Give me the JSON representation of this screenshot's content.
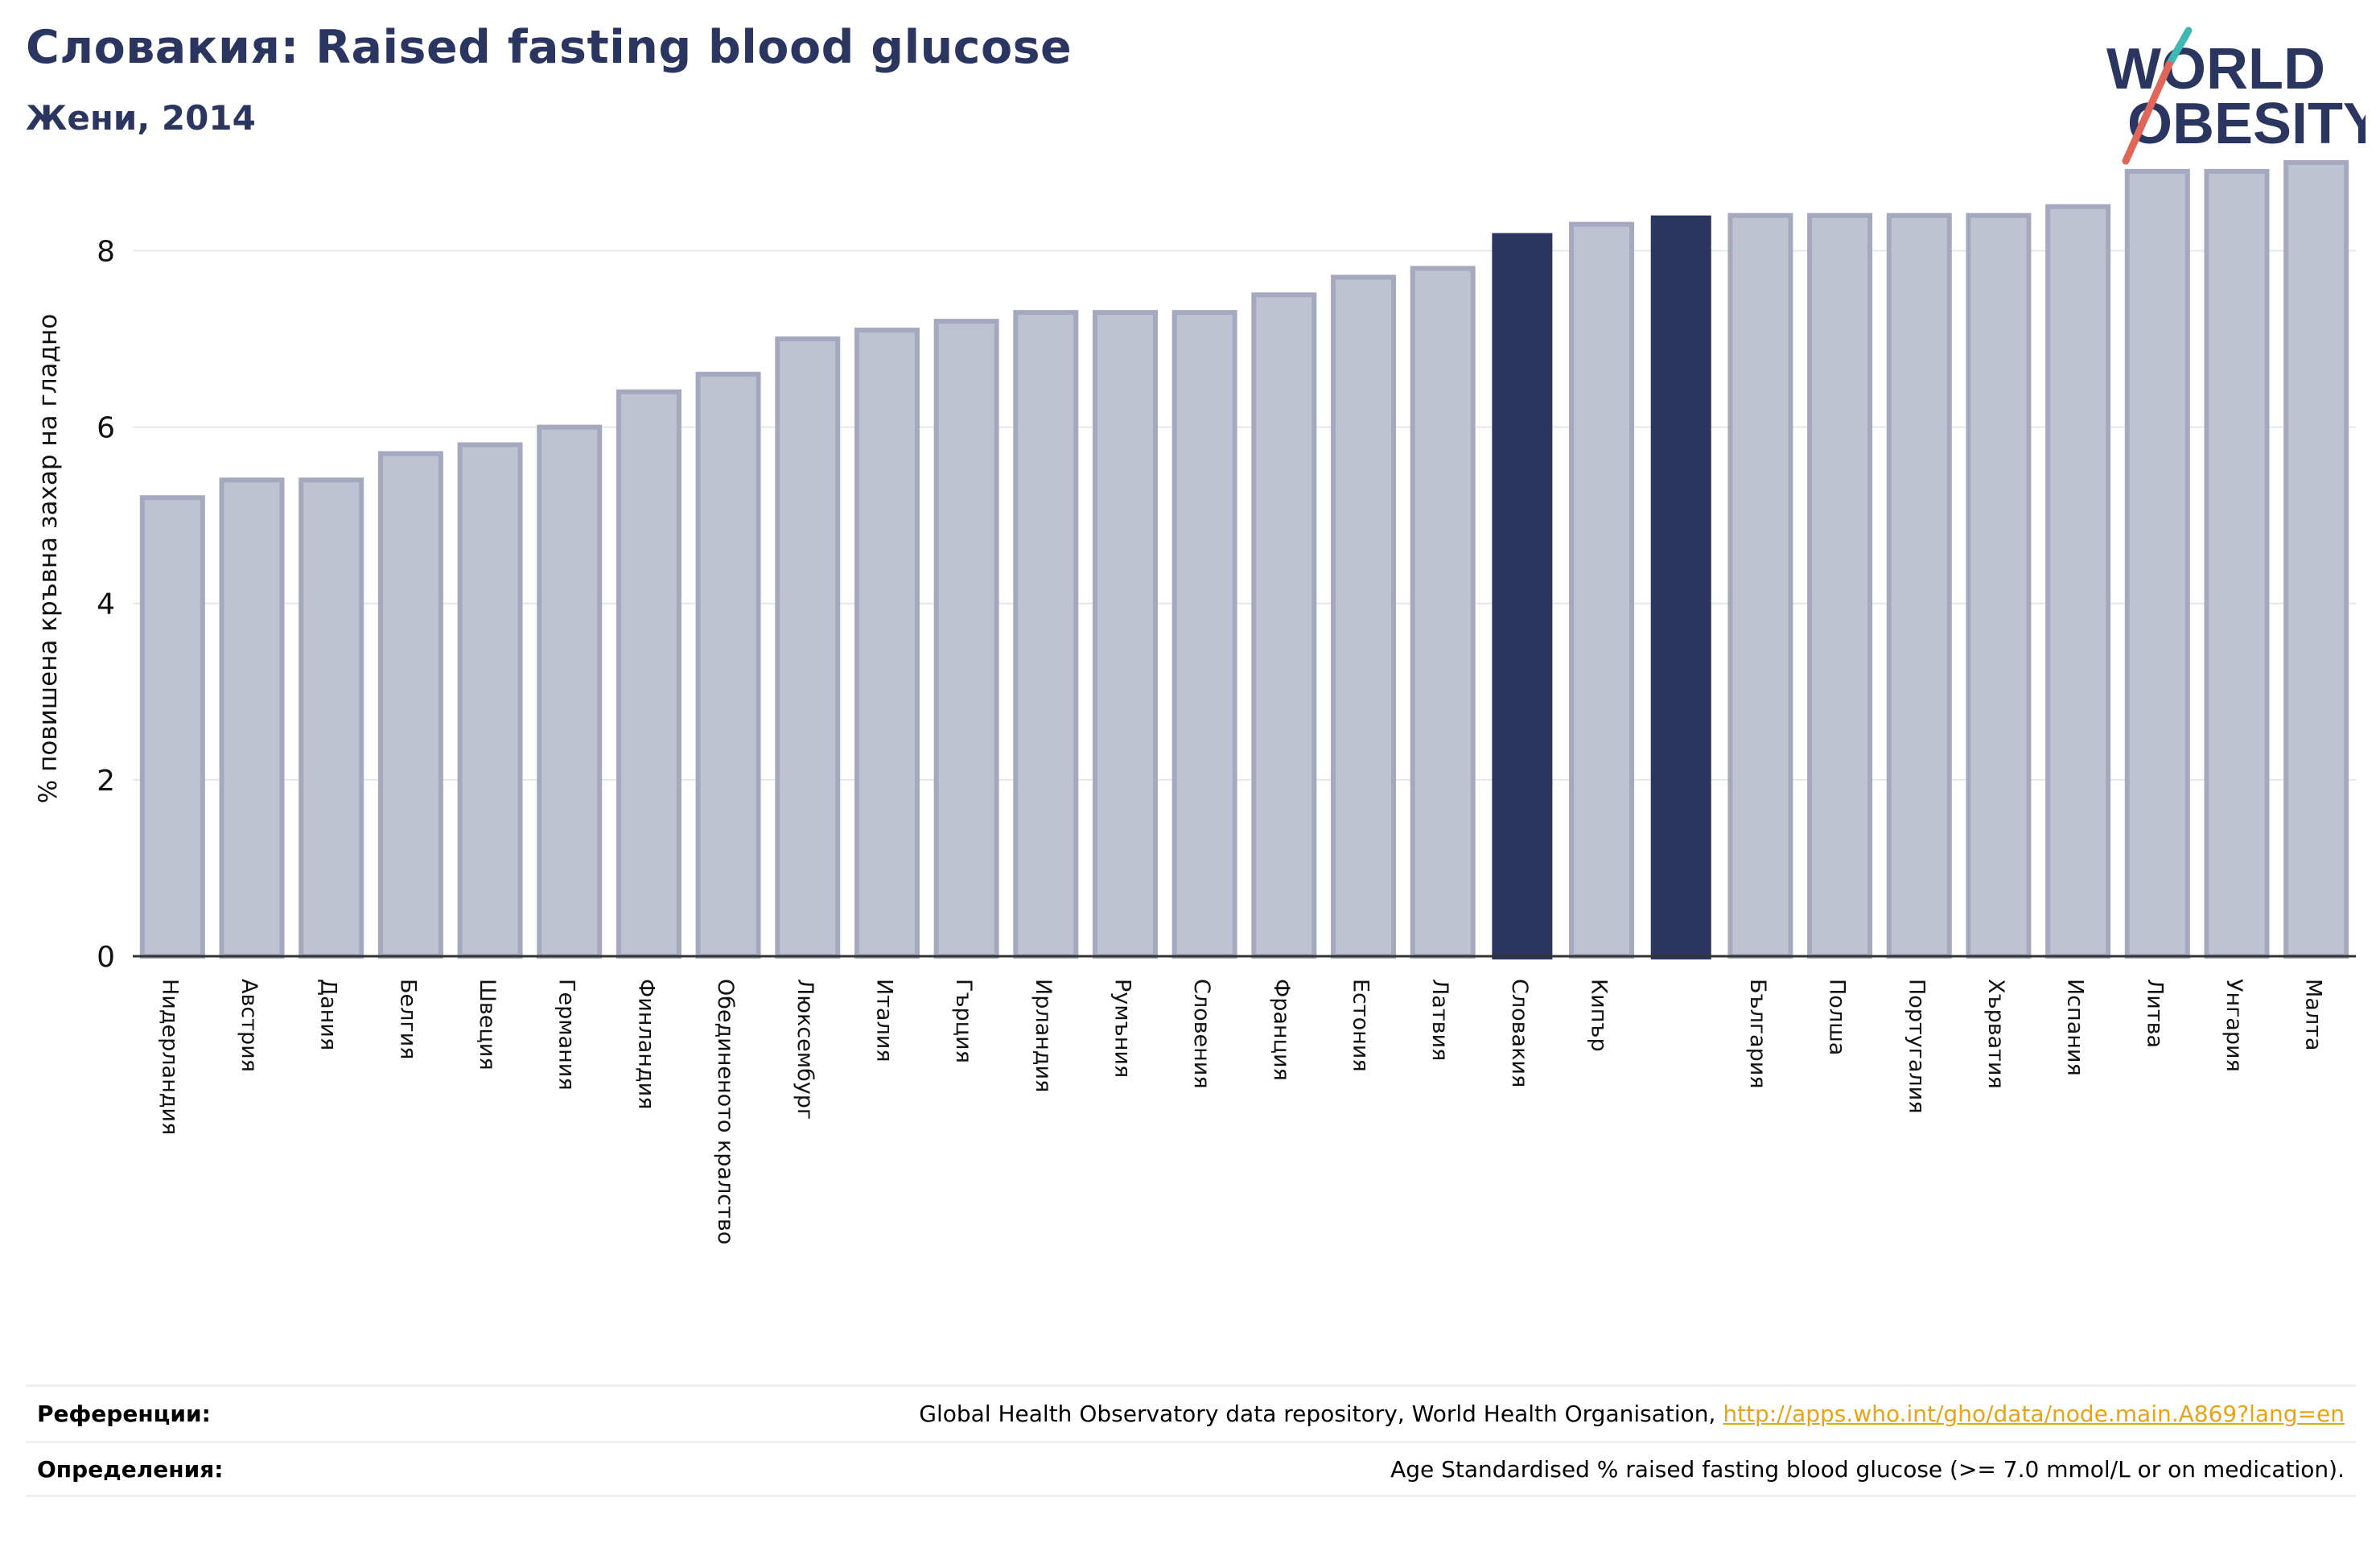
{
  "header": {
    "title": "Словакия: Raised fasting blood glucose",
    "subtitle": "Жени, 2014"
  },
  "logo": {
    "line1": "WORLD",
    "line2": "OBESITY"
  },
  "colors": {
    "highlight": "#2a3560",
    "bar": "#bfc2d0",
    "bar_edge": "#a4a9bf",
    "title": "#2a3560",
    "link": "#e8a317"
  },
  "chart_data": {
    "type": "bar",
    "ylabel": "% повишена кръвна захар на гладно",
    "xlabel": "",
    "ylim": [
      0,
      9.2
    ],
    "yticks": [
      0,
      2,
      4,
      6,
      8
    ],
    "grid": true,
    "categories": [
      "Нидерландия",
      "Австрия",
      "Дания",
      "Белгия",
      "Швеция",
      "Германия",
      "Финландия",
      "Обединеното кралство",
      "Люксембург",
      "Италия",
      "Гърция",
      "Ирландия",
      "Румъния",
      "Словения",
      "Франция",
      "Естония",
      "Латвия",
      "Словакия",
      "Кипър",
      "",
      "България",
      "Полша",
      "Португалия",
      "Хърватия",
      "Испания",
      "Литва",
      "Унгария",
      "Малта"
    ],
    "values": [
      5.2,
      5.4,
      5.4,
      5.7,
      5.8,
      6.0,
      6.4,
      6.6,
      7.0,
      7.1,
      7.2,
      7.3,
      7.3,
      7.3,
      7.5,
      7.7,
      7.8,
      8.2,
      8.3,
      8.4,
      8.4,
      8.4,
      8.4,
      8.4,
      8.5,
      8.9,
      8.9,
      9.0
    ],
    "highlighted": [
      "Словакия",
      ""
    ]
  },
  "references": {
    "refs_label": "Референции:",
    "refs_text": "Global Health Observatory data repository, World Health Organisation, ",
    "refs_link": "http://apps.who.int/gho/data/node.main.A869?lang=en",
    "defs_label": "Определения:",
    "defs_text": "Age Standardised % raised fasting blood glucose (>= 7.0 mmol/L or on medication)."
  }
}
